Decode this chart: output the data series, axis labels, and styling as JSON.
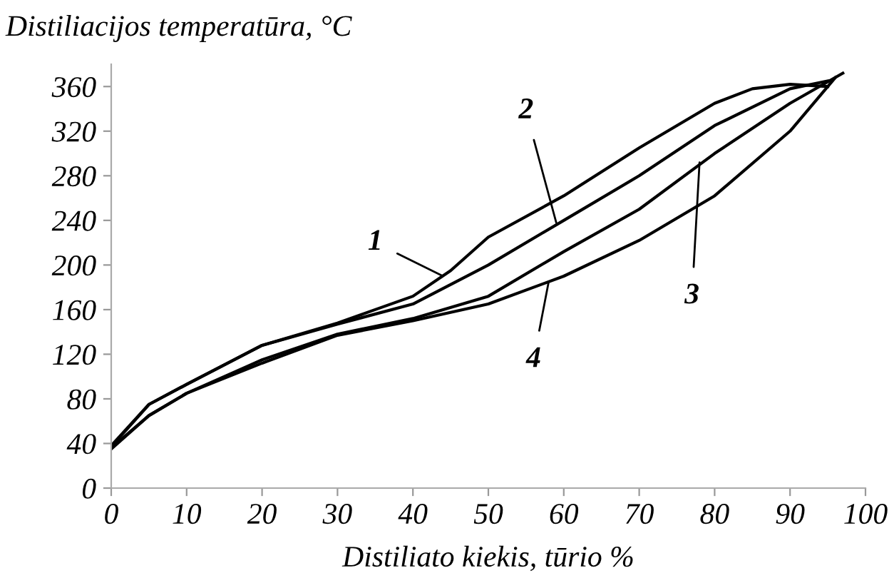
{
  "chart_data": {
    "type": "line",
    "xlabel": "Distiliato kiekis, tūrio %",
    "ylabel": "Distiliacijos temperatūra, °C",
    "xlim": [
      0,
      100
    ],
    "xticks": [
      0,
      10,
      20,
      30,
      40,
      50,
      60,
      70,
      80,
      90,
      100
    ],
    "ylim": [
      0,
      380
    ],
    "yticks": [
      0,
      40,
      80,
      120,
      160,
      200,
      240,
      280,
      320,
      360
    ],
    "grid": false,
    "legend": false,
    "marker": "none",
    "line_style": "solid",
    "series": [
      {
        "color": "#000000",
        "x": [
          0,
          5,
          10,
          20,
          30,
          40,
          45,
          50,
          60,
          70,
          80,
          85,
          90,
          95
        ],
        "values": [
          38,
          75,
          93,
          128,
          148,
          172,
          195,
          225,
          262,
          305,
          345,
          358,
          362,
          360
        ]
      },
      {
        "color": "#000000",
        "x": [
          0,
          5,
          10,
          20,
          30,
          40,
          50,
          60,
          70,
          80,
          90,
          95
        ],
        "values": [
          37,
          75,
          93,
          128,
          147,
          165,
          200,
          240,
          280,
          325,
          358,
          365
        ]
      },
      {
        "color": "#000000",
        "x": [
          0,
          5,
          10,
          20,
          30,
          40,
          50,
          60,
          70,
          80,
          90,
          97
        ],
        "values": [
          36,
          65,
          85,
          115,
          138,
          152,
          172,
          212,
          250,
          300,
          345,
          372
        ]
      },
      {
        "color": "#000000",
        "x": [
          0,
          5,
          10,
          20,
          30,
          40,
          50,
          60,
          70,
          80,
          90,
          96
        ],
        "values": [
          35,
          65,
          85,
          112,
          137,
          150,
          165,
          190,
          222,
          262,
          320,
          368
        ]
      }
    ],
    "annotations": [
      {
        "text": "1",
        "x": 44,
        "y": 190
      },
      {
        "text": "2",
        "x": 59,
        "y": 238
      },
      {
        "text": "3",
        "x": 78,
        "y": 292
      },
      {
        "text": "4",
        "x": 58,
        "y": 185
      }
    ]
  }
}
